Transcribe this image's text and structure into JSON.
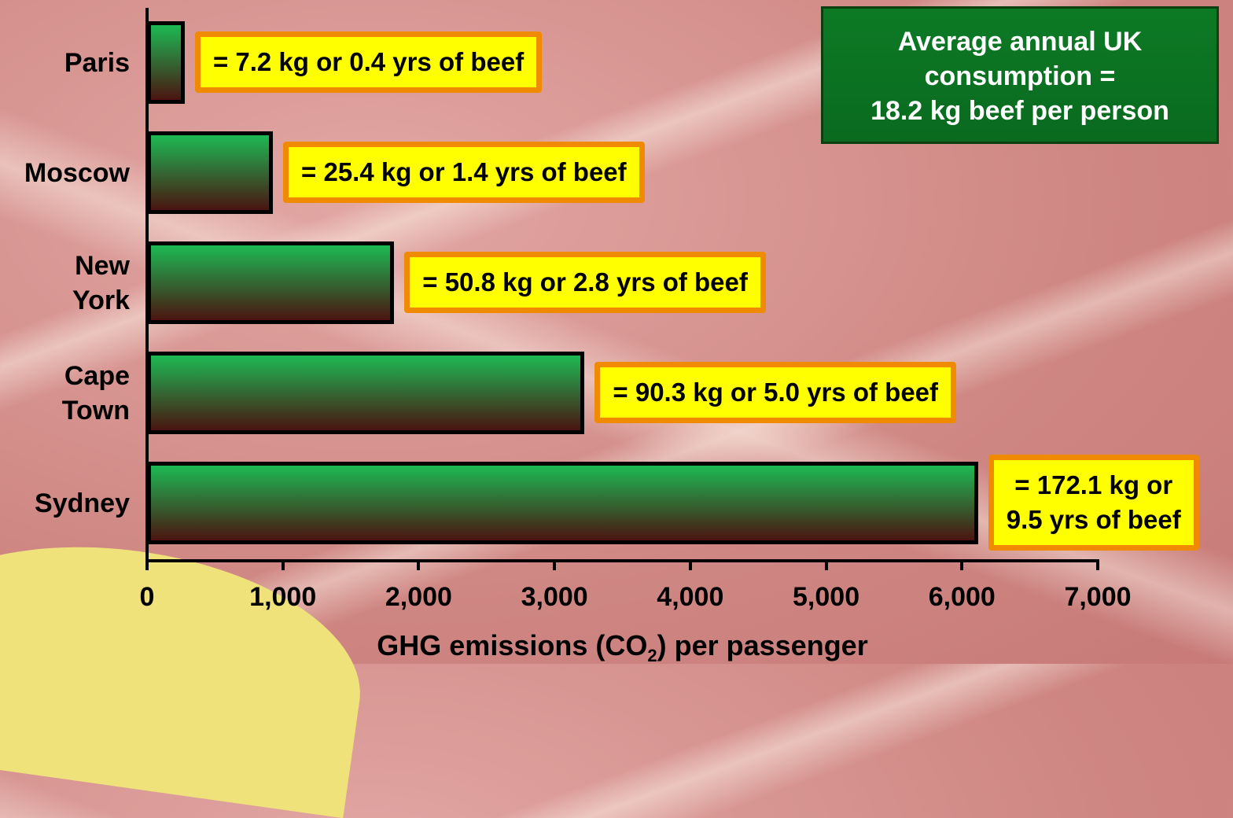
{
  "chart_data": {
    "type": "bar",
    "orientation": "horizontal",
    "categories": [
      "Paris",
      "Moscow",
      "New York",
      "Cape Town",
      "Sydney"
    ],
    "values": [
      266,
      915,
      1808,
      3210,
      6107
    ],
    "value_labels": [
      [
        "= 7.2 kg or 0.4 yrs of beef"
      ],
      [
        "= 25.4 kg or 1.4 yrs of beef"
      ],
      [
        "= 50.8 kg or 2.8 yrs of beef"
      ],
      [
        "= 90.3 kg or 5.0 yrs of beef"
      ],
      [
        "= 172.1 kg or",
        "9.5 yrs of beef"
      ]
    ],
    "xlim": [
      0,
      7000
    ],
    "xticks": [
      0,
      {
        "value": 1000,
        "label": "1,000"
      },
      {
        "value": 2000,
        "label": "2,000"
      },
      {
        "value": 3000,
        "label": "3,000"
      },
      {
        "value": 4000,
        "label": "4,000"
      },
      {
        "value": 5000,
        "label": "5,000"
      },
      {
        "value": 6000,
        "label": "6,000"
      },
      {
        "value": 7000,
        "label": "7,000"
      }
    ],
    "x_label": [
      "GHG emissions (CO",
      "2",
      ") per passenger"
    ],
    "callout": [
      "Average annual UK",
      "consumption =",
      "18.2 kg beef per person"
    ],
    "color_top": "#1db954",
    "color_bottom": "#4a1410"
  }
}
